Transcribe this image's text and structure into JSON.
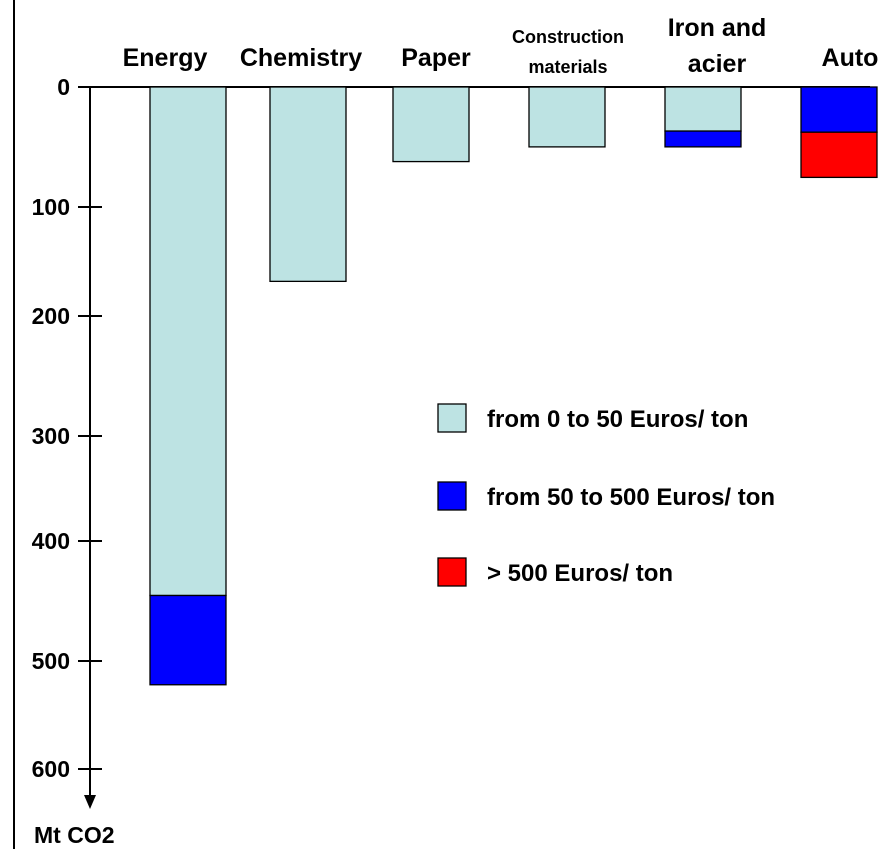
{
  "chart_data": {
    "type": "bar",
    "stacked": true,
    "y_direction": "downward",
    "categories": [
      "Energy",
      "Chemistry",
      "Paper",
      "Construction materials",
      "Iron and acier",
      "Auto"
    ],
    "series": [
      {
        "name": "from 0 to 50 Euros/ ton",
        "color": "#bde3e3",
        "values": [
          450,
          172,
          66,
          53,
          39,
          0
        ]
      },
      {
        "name": "from 50 to 500 Euros/ ton",
        "color": "#0000ff",
        "values": [
          79,
          0,
          0,
          0,
          14,
          40
        ]
      },
      {
        "name": "> 500 Euros/ ton",
        "color": "#ff0000",
        "values": [
          0,
          0,
          0,
          0,
          0,
          40
        ]
      }
    ],
    "yticks": [
      "0",
      "100",
      "200",
      "300",
      "400",
      "500",
      "600"
    ],
    "ylim": [
      0,
      620
    ],
    "ylabel": "Mt CO2",
    "title": "",
    "legend_position": "right-middle",
    "grid": false
  }
}
